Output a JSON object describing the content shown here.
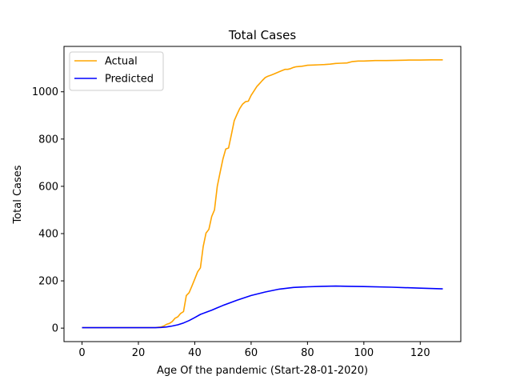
{
  "chart_data": {
    "type": "line",
    "title": "Total Cases",
    "xlabel": "Age Of the pandemic (Start-28-01-2020)",
    "ylabel": "Total Cases",
    "xlim": [
      -6.4,
      134.4
    ],
    "ylim": [
      -57,
      1192
    ],
    "xticks": [
      0,
      20,
      40,
      60,
      80,
      100,
      120
    ],
    "yticks": [
      0,
      200,
      400,
      600,
      800,
      1000
    ],
    "legend_position": "top-left",
    "grid": false,
    "series": [
      {
        "name": "Actual",
        "color": "#ffa500",
        "x": [
          0,
          26,
          28,
          29,
          30,
          31,
          32,
          33,
          34,
          35,
          36,
          37,
          38,
          39,
          40,
          41,
          42,
          43,
          44,
          45,
          46,
          47,
          48,
          49,
          50,
          51,
          52,
          53,
          54,
          55,
          56,
          57,
          58,
          59,
          60,
          61,
          62,
          63,
          64,
          65,
          66,
          67,
          68,
          69,
          70,
          71,
          72,
          73,
          74,
          75,
          76,
          78,
          80,
          82,
          84,
          86,
          88,
          90,
          92,
          94,
          96,
          98,
          100,
          104,
          108,
          112,
          116,
          120,
          124,
          128
        ],
        "values": [
          2,
          2,
          5,
          9,
          16,
          20,
          28,
          42,
          48,
          62,
          70,
          138,
          150,
          178,
          208,
          238,
          255,
          345,
          402,
          418,
          472,
          500,
          600,
          660,
          716,
          758,
          762,
          820,
          878,
          905,
          930,
          948,
          958,
          960,
          985,
          1003,
          1022,
          1035,
          1048,
          1060,
          1066,
          1070,
          1075,
          1080,
          1085,
          1090,
          1095,
          1095,
          1098,
          1103,
          1106,
          1108,
          1112,
          1113,
          1114,
          1115,
          1117,
          1120,
          1121,
          1122,
          1128,
          1130,
          1130,
          1132,
          1132,
          1133,
          1134,
          1134,
          1135,
          1135
        ]
      },
      {
        "name": "Predicted",
        "color": "#0000ff",
        "x": [
          0,
          26,
          28,
          30,
          32,
          34,
          36,
          38,
          40,
          42,
          44,
          46,
          48,
          50,
          55,
          60,
          65,
          70,
          75,
          80,
          85,
          90,
          95,
          100,
          110,
          120,
          128
        ],
        "values": [
          2,
          2,
          3,
          5,
          9,
          14,
          22,
          32,
          45,
          58,
          67,
          76,
          86,
          96,
          118,
          138,
          153,
          165,
          172,
          175,
          177,
          178,
          177,
          176,
          173,
          169,
          166
        ]
      }
    ]
  }
}
